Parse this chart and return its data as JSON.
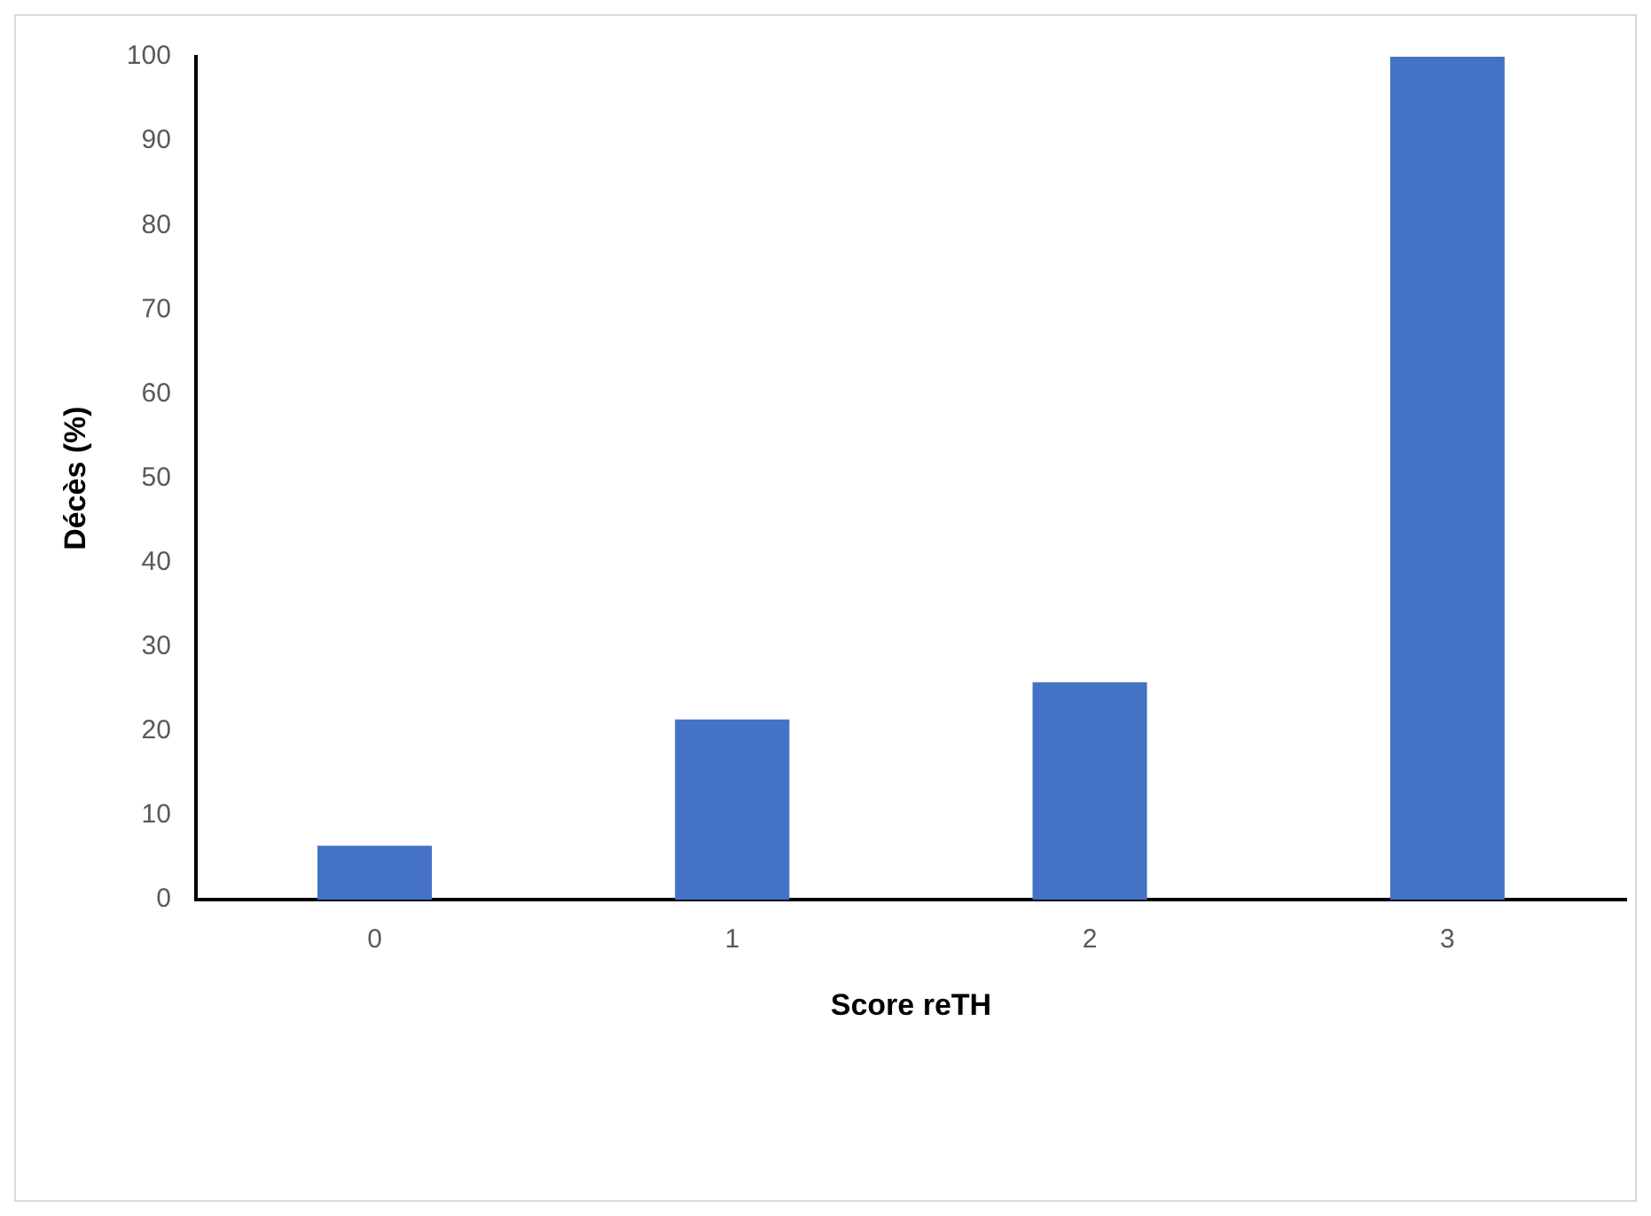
{
  "chart_data": {
    "type": "bar",
    "xlabel": "Score reTH",
    "ylabel": "Décès (%)",
    "categories": [
      "0",
      "1",
      "2",
      "3"
    ],
    "values": [
      6.4,
      21.4,
      25.8,
      100
    ],
    "color": "#4472c4",
    "ylim": [
      0,
      100
    ],
    "yticks": [
      0,
      10,
      20,
      30,
      40,
      50,
      60,
      70,
      80,
      90,
      100
    ],
    "grid": false,
    "legend": false
  }
}
